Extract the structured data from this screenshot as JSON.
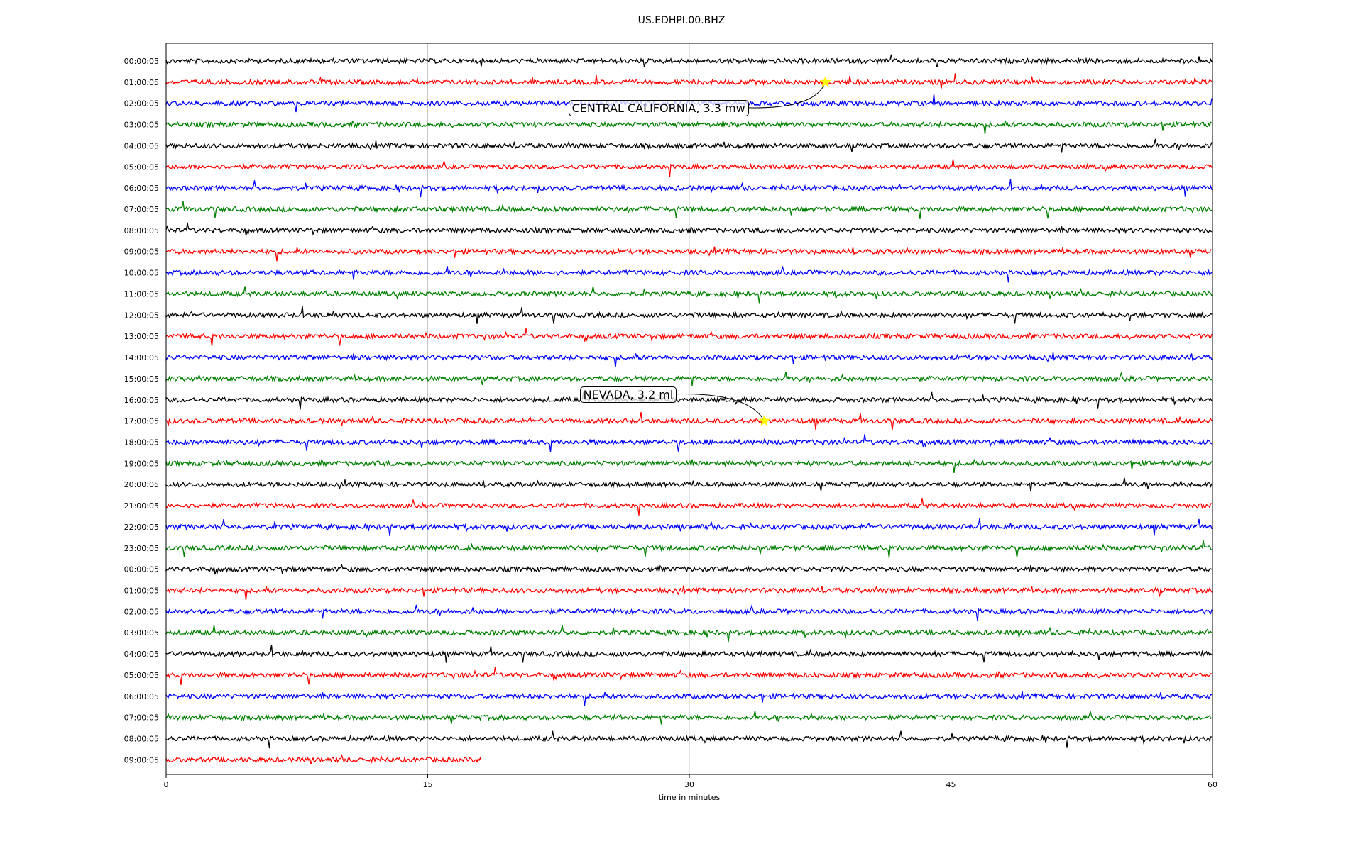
{
  "chart_data": {
    "type": "line",
    "title": "US.EDHPI.00.BHZ",
    "xlabel": "time in minutes",
    "ylabel": "",
    "xlim": [
      0,
      60
    ],
    "x_ticks": [
      "0",
      "15",
      "30",
      "45",
      "60"
    ],
    "grid": "vertical lines at x ticks",
    "trace_colors": [
      "#000000",
      "#ff0000",
      "#0000ff",
      "#008000"
    ],
    "rows": [
      "00:00:05",
      "01:00:05",
      "02:00:05",
      "03:00:05",
      "04:00:05",
      "05:00:05",
      "06:00:05",
      "07:00:05",
      "08:00:05",
      "09:00:05",
      "10:00:05",
      "11:00:05",
      "12:00:05",
      "13:00:05",
      "14:00:05",
      "15:00:05",
      "16:00:05",
      "17:00:05",
      "18:00:05",
      "19:00:05",
      "20:00:05",
      "21:00:05",
      "22:00:05",
      "23:00:05",
      "00:00:05",
      "01:00:05",
      "02:00:05",
      "03:00:05",
      "04:00:05",
      "05:00:05",
      "06:00:05",
      "07:00:05",
      "08:00:05",
      "09:00:05"
    ],
    "last_row_end_minute": 18.1,
    "events": [
      {
        "label": "CENTRAL CALIFORNIA, 3.3 mw",
        "row": 1,
        "minute": 37.8
      },
      {
        "label": "NEVADA, 3.2 ml",
        "row": 17,
        "minute": 34.3
      }
    ]
  }
}
